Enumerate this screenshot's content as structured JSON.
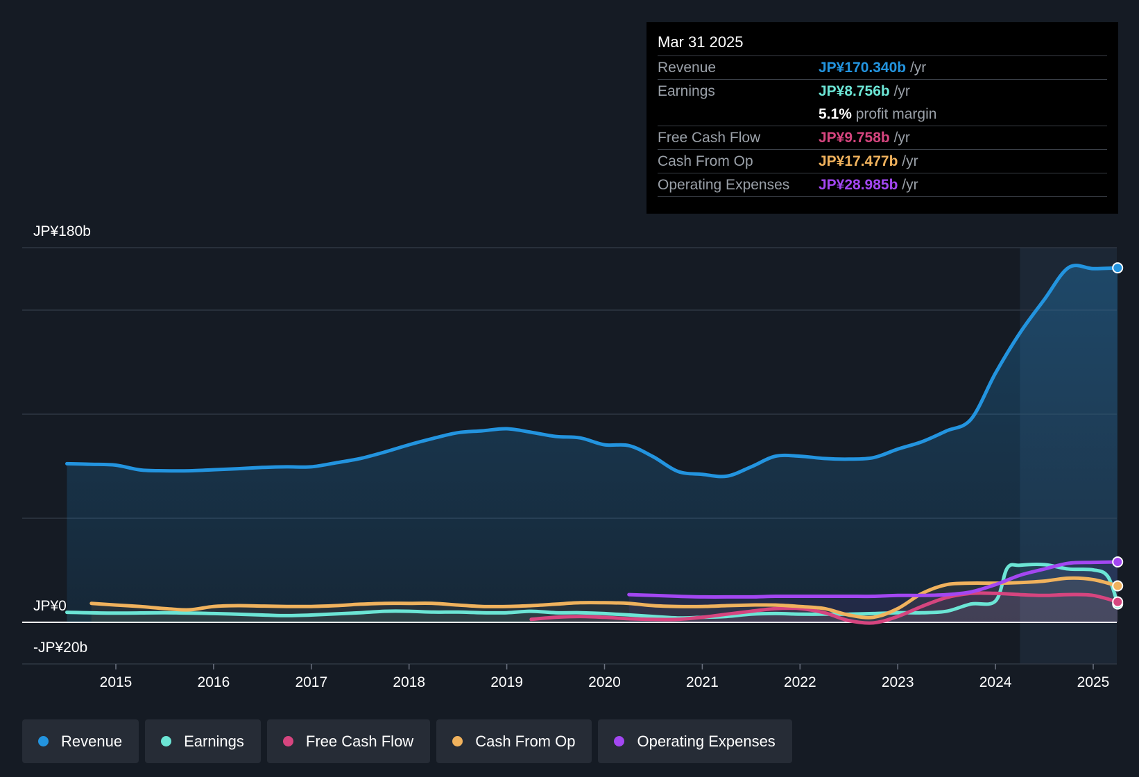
{
  "tooltip": {
    "date": "Mar 31 2025",
    "rows": [
      {
        "label": "Revenue",
        "value": "JP¥170.340b",
        "unit": "/yr",
        "color": "#2394df"
      },
      {
        "label": "Earnings",
        "value": "JP¥8.756b",
        "unit": "/yr",
        "color": "#6ce5d5"
      },
      {
        "label": "",
        "value": "5.1%",
        "unit": "profit margin",
        "color": "#ffffff"
      },
      {
        "label": "Free Cash Flow",
        "value": "JP¥9.758b",
        "unit": "/yr",
        "color": "#d6457f"
      },
      {
        "label": "Cash From Op",
        "value": "JP¥17.477b",
        "unit": "/yr",
        "color": "#f0b25d"
      },
      {
        "label": "Operating Expenses",
        "value": "JP¥28.985b",
        "unit": "/yr",
        "color": "#a347f2"
      }
    ]
  },
  "legend": [
    {
      "label": "Revenue",
      "color": "#2394df"
    },
    {
      "label": "Earnings",
      "color": "#6ce5d5"
    },
    {
      "label": "Free Cash Flow",
      "color": "#d6457f"
    },
    {
      "label": "Cash From Op",
      "color": "#f0b25d"
    },
    {
      "label": "Operating Expenses",
      "color": "#a347f2"
    }
  ],
  "chart_data": {
    "type": "line",
    "title": "",
    "xlabel": "",
    "ylabel": "",
    "ylim": [
      -20,
      180
    ],
    "xlim": [
      2014.05,
      2025.25
    ],
    "y_tick_labels": [
      {
        "value": 180,
        "label": "JP¥180b"
      },
      {
        "value": 0,
        "label": "JP¥0"
      },
      {
        "value": -20,
        "label": "-JP¥20b"
      }
    ],
    "gridlines": [
      180,
      150,
      100,
      50,
      0,
      -20
    ],
    "x_ticks": [
      2015,
      2016,
      2017,
      2018,
      2019,
      2020,
      2021,
      2022,
      2023,
      2024,
      2025
    ],
    "highlight_start": 2024.25,
    "series": [
      {
        "name": "Revenue",
        "color": "#2394df",
        "fill": true,
        "points": [
          [
            2014.5,
            76.2
          ],
          [
            2014.75,
            75.9
          ],
          [
            2015.0,
            75.5
          ],
          [
            2015.25,
            73.2
          ],
          [
            2015.5,
            72.8
          ],
          [
            2015.75,
            72.8
          ],
          [
            2016.0,
            73.3
          ],
          [
            2016.25,
            73.8
          ],
          [
            2016.5,
            74.4
          ],
          [
            2016.75,
            74.7
          ],
          [
            2017.0,
            74.7
          ],
          [
            2017.25,
            76.6
          ],
          [
            2017.5,
            78.7
          ],
          [
            2017.75,
            81.8
          ],
          [
            2018.0,
            85.3
          ],
          [
            2018.25,
            88.4
          ],
          [
            2018.5,
            91.1
          ],
          [
            2018.75,
            92.0
          ],
          [
            2019.0,
            93.0
          ],
          [
            2019.25,
            91.3
          ],
          [
            2019.5,
            89.3
          ],
          [
            2019.75,
            88.6
          ],
          [
            2020.0,
            85.3
          ],
          [
            2020.25,
            84.9
          ],
          [
            2020.5,
            79.5
          ],
          [
            2020.75,
            72.5
          ],
          [
            2021.0,
            71.1
          ],
          [
            2021.25,
            70.2
          ],
          [
            2021.5,
            74.7
          ],
          [
            2021.75,
            79.8
          ],
          [
            2022.0,
            79.8
          ],
          [
            2022.25,
            78.7
          ],
          [
            2022.5,
            78.4
          ],
          [
            2022.75,
            79.1
          ],
          [
            2023.0,
            83.2
          ],
          [
            2023.25,
            86.8
          ],
          [
            2023.5,
            92.0
          ],
          [
            2023.75,
            97.6
          ],
          [
            2024.0,
            119.7
          ],
          [
            2024.25,
            139.0
          ],
          [
            2024.5,
            155.1
          ],
          [
            2024.75,
            170.5
          ],
          [
            2025.0,
            169.9
          ],
          [
            2025.25,
            170.3
          ]
        ]
      },
      {
        "name": "Earnings",
        "color": "#6ce5d5",
        "points": [
          [
            2014.5,
            4.8
          ],
          [
            2015.0,
            4.4
          ],
          [
            2015.5,
            4.6
          ],
          [
            2016.0,
            4.2
          ],
          [
            2016.5,
            3.5
          ],
          [
            2016.75,
            3.2
          ],
          [
            2017.0,
            3.5
          ],
          [
            2017.5,
            4.6
          ],
          [
            2017.75,
            5.3
          ],
          [
            2018.0,
            5.3
          ],
          [
            2018.25,
            4.9
          ],
          [
            2018.5,
            4.9
          ],
          [
            2018.75,
            4.6
          ],
          [
            2019.0,
            4.6
          ],
          [
            2019.25,
            5.3
          ],
          [
            2019.5,
            4.6
          ],
          [
            2019.75,
            4.6
          ],
          [
            2020.0,
            4.2
          ],
          [
            2020.5,
            2.8
          ],
          [
            2020.75,
            2.1
          ],
          [
            2021.0,
            2.4
          ],
          [
            2021.25,
            2.8
          ],
          [
            2021.5,
            3.9
          ],
          [
            2021.75,
            4.2
          ],
          [
            2022.0,
            3.9
          ],
          [
            2022.25,
            3.9
          ],
          [
            2022.5,
            3.9
          ],
          [
            2022.75,
            4.2
          ],
          [
            2023.0,
            4.6
          ],
          [
            2023.25,
            4.6
          ],
          [
            2023.5,
            5.3
          ],
          [
            2023.75,
            8.8
          ],
          [
            2024.0,
            10.2
          ],
          [
            2024.12,
            26.0
          ],
          [
            2024.25,
            27.4
          ],
          [
            2024.5,
            27.7
          ],
          [
            2024.75,
            25.6
          ],
          [
            2025.0,
            25.2
          ],
          [
            2025.15,
            22.0
          ],
          [
            2025.25,
            8.8
          ]
        ]
      },
      {
        "name": "Free Cash Flow",
        "color": "#d6457f",
        "points": [
          [
            2019.25,
            1.4
          ],
          [
            2019.5,
            2.4
          ],
          [
            2019.75,
            2.8
          ],
          [
            2020.0,
            2.4
          ],
          [
            2020.25,
            1.7
          ],
          [
            2020.5,
            1.4
          ],
          [
            2020.75,
            1.4
          ],
          [
            2021.0,
            2.4
          ],
          [
            2021.25,
            3.9
          ],
          [
            2021.5,
            5.3
          ],
          [
            2021.75,
            6.6
          ],
          [
            2022.0,
            6.6
          ],
          [
            2022.25,
            4.6
          ],
          [
            2022.5,
            0.8
          ],
          [
            2022.75,
            -0.3
          ],
          [
            2023.0,
            2.8
          ],
          [
            2023.25,
            7.7
          ],
          [
            2023.5,
            11.9
          ],
          [
            2023.75,
            13.9
          ],
          [
            2024.0,
            13.9
          ],
          [
            2024.25,
            13.3
          ],
          [
            2024.5,
            12.9
          ],
          [
            2024.75,
            13.3
          ],
          [
            2025.0,
            12.9
          ],
          [
            2025.25,
            9.8
          ]
        ]
      },
      {
        "name": "Cash From Op",
        "color": "#f0b25d",
        "points": [
          [
            2014.75,
            9.1
          ],
          [
            2015.0,
            8.3
          ],
          [
            2015.25,
            7.6
          ],
          [
            2015.5,
            6.6
          ],
          [
            2015.75,
            6.0
          ],
          [
            2016.0,
            7.6
          ],
          [
            2016.25,
            8.0
          ],
          [
            2016.5,
            7.8
          ],
          [
            2016.75,
            7.6
          ],
          [
            2017.0,
            7.6
          ],
          [
            2017.25,
            8.0
          ],
          [
            2017.5,
            8.7
          ],
          [
            2017.75,
            9.1
          ],
          [
            2018.0,
            9.1
          ],
          [
            2018.25,
            9.1
          ],
          [
            2018.5,
            8.3
          ],
          [
            2018.75,
            7.6
          ],
          [
            2019.0,
            7.6
          ],
          [
            2019.25,
            8.0
          ],
          [
            2019.5,
            8.7
          ],
          [
            2019.75,
            9.4
          ],
          [
            2020.0,
            9.4
          ],
          [
            2020.25,
            9.1
          ],
          [
            2020.5,
            8.0
          ],
          [
            2020.75,
            7.6
          ],
          [
            2021.0,
            7.6
          ],
          [
            2021.25,
            8.0
          ],
          [
            2021.5,
            8.3
          ],
          [
            2021.75,
            8.3
          ],
          [
            2022.0,
            7.6
          ],
          [
            2022.25,
            6.6
          ],
          [
            2022.5,
            3.5
          ],
          [
            2022.75,
            2.4
          ],
          [
            2023.0,
            6.6
          ],
          [
            2023.25,
            13.9
          ],
          [
            2023.5,
            18.1
          ],
          [
            2023.75,
            18.8
          ],
          [
            2024.0,
            18.8
          ],
          [
            2024.25,
            19.1
          ],
          [
            2024.5,
            19.8
          ],
          [
            2024.75,
            21.2
          ],
          [
            2025.0,
            20.5
          ],
          [
            2025.25,
            17.5
          ]
        ]
      },
      {
        "name": "Operating Expenses",
        "color": "#a347f2",
        "points": [
          [
            2020.25,
            13.3
          ],
          [
            2020.5,
            12.9
          ],
          [
            2020.75,
            12.5
          ],
          [
            2021.0,
            12.2
          ],
          [
            2021.25,
            12.2
          ],
          [
            2021.5,
            12.2
          ],
          [
            2021.75,
            12.5
          ],
          [
            2022.0,
            12.5
          ],
          [
            2022.25,
            12.5
          ],
          [
            2022.5,
            12.5
          ],
          [
            2022.75,
            12.5
          ],
          [
            2023.0,
            12.9
          ],
          [
            2023.25,
            12.9
          ],
          [
            2023.5,
            13.3
          ],
          [
            2023.75,
            14.6
          ],
          [
            2024.0,
            18.1
          ],
          [
            2024.25,
            22.6
          ],
          [
            2024.5,
            25.6
          ],
          [
            2024.75,
            28.4
          ],
          [
            2025.0,
            28.8
          ],
          [
            2025.25,
            29.0
          ]
        ]
      }
    ]
  }
}
